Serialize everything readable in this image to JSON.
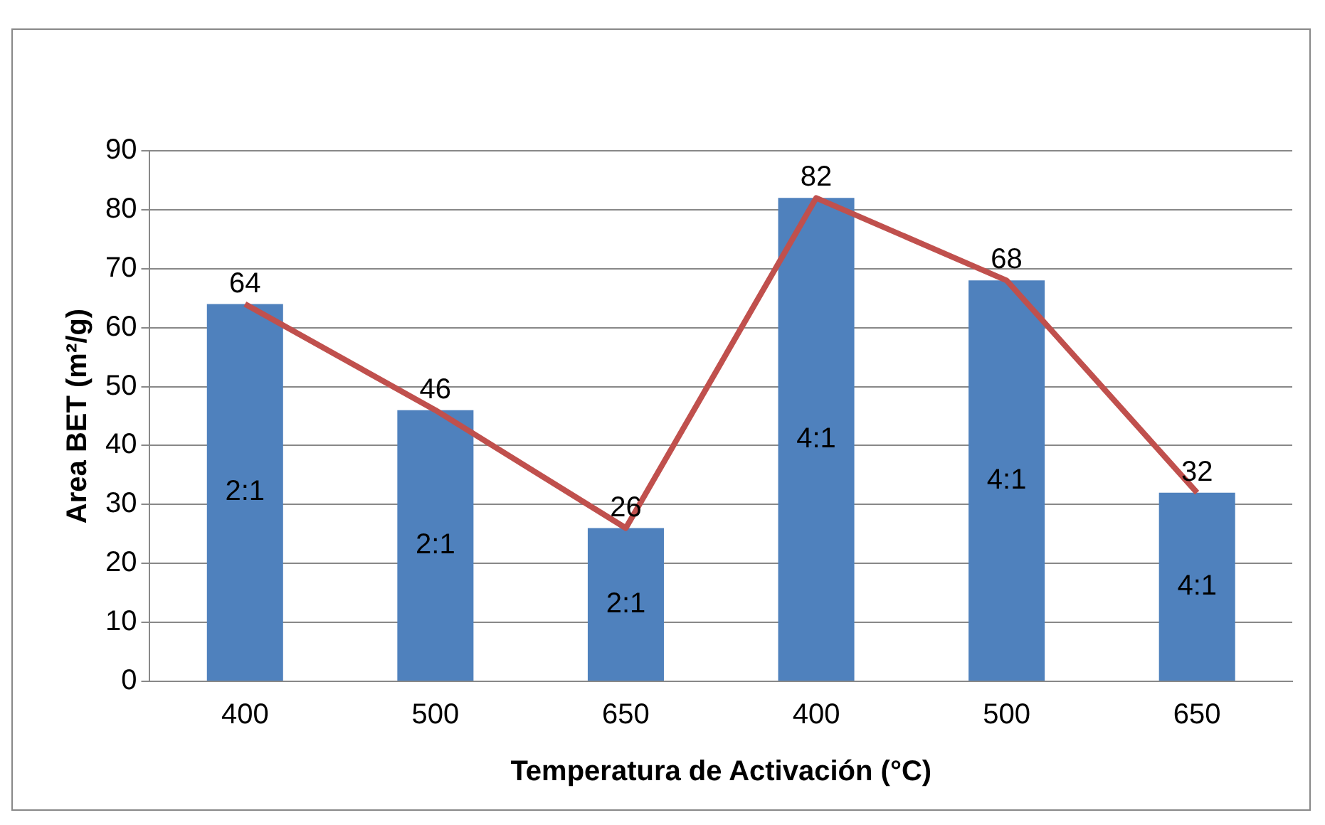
{
  "chart_data": {
    "type": "bar",
    "xlabel": "Temperatura de Activación (°C)",
    "ylabel": "Area BET (m²/g)",
    "categories": [
      "400",
      "500",
      "650",
      "400",
      "500",
      "650"
    ],
    "series": [
      {
        "color": "#4f81bd",
        "values": [
          64,
          46,
          26,
          82,
          68,
          32
        ],
        "value_labels": [
          "64",
          "46",
          "26",
          "82",
          "68",
          "32"
        ]
      },
      {
        "type": "line",
        "color": "#c0504d",
        "values": [
          64,
          46,
          26,
          82,
          68,
          32
        ]
      }
    ],
    "ylim": [
      0,
      90
    ],
    "yticks": [
      0,
      10,
      20,
      30,
      40,
      50,
      60,
      70,
      80,
      90
    ],
    "grid": "y",
    "legend": false,
    "marker": "none",
    "annotations": [
      "2:1",
      "2:1",
      "2:1",
      "4:1",
      "4:1",
      "4:1"
    ]
  }
}
